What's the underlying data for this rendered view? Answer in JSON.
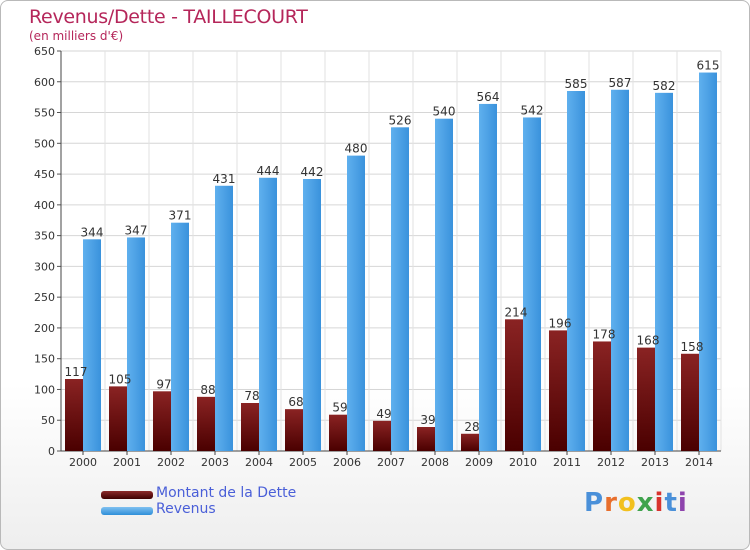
{
  "chart_data": {
    "type": "bar",
    "title": "Revenus/Dette - TAILLECOURT",
    "subtitle": "(en milliers d'€)",
    "categories": [
      "2000",
      "2001",
      "2002",
      "2003",
      "2004",
      "2005",
      "2006",
      "2007",
      "2008",
      "2009",
      "2010",
      "2011",
      "2012",
      "2013",
      "2014"
    ],
    "series": [
      {
        "name": "Montant de la Dette",
        "color": "#6b0f0f",
        "values": [
          117,
          105,
          97,
          88,
          78,
          68,
          59,
          49,
          39,
          28,
          214,
          196,
          178,
          168,
          158
        ]
      },
      {
        "name": "Revenus",
        "color": "#4aa3e6",
        "values": [
          344,
          347,
          371,
          431,
          444,
          442,
          480,
          526,
          540,
          564,
          542,
          585,
          587,
          582,
          615
        ]
      }
    ],
    "yticks": [
      "0",
      "50",
      "100",
      "150",
      "200",
      "250",
      "300",
      "350",
      "400",
      "450",
      "500",
      "550",
      "600",
      "650"
    ],
    "ylim": [
      0,
      650
    ],
    "grid": true,
    "legend_position": "bottom-left"
  },
  "logo": {
    "text": "Proxiti"
  }
}
